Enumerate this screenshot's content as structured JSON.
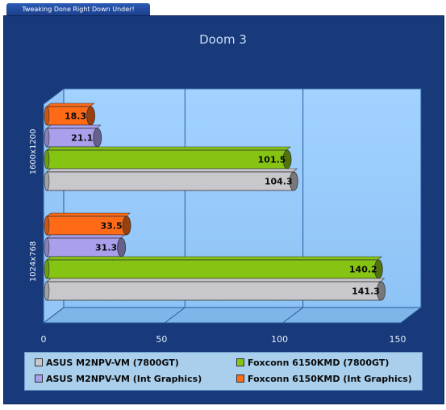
{
  "banner": "Tweaking Done Right Down Under!",
  "chart_data": {
    "type": "bar",
    "orientation": "horizontal",
    "title": "Doom 3",
    "categories": [
      "1600x1200",
      "1024x768"
    ],
    "series": [
      {
        "name": "ASUS M2NPV-VM (7800GT)",
        "color": "#c8c8cc",
        "values": [
          104.3,
          141.3
        ],
        "labels": [
          "104.3",
          "141.3"
        ]
      },
      {
        "name": "Foxconn 6150KMD (7800GT)",
        "color": "#86c413",
        "values": [
          101.5,
          140.2
        ],
        "labels": [
          "101.5",
          "140.2"
        ]
      },
      {
        "name": "ASUS M2NPV-VM (Int Graphics)",
        "color": "#a8a0ec",
        "values": [
          21.1,
          31.3
        ],
        "labels": [
          "21.1",
          "31.3"
        ]
      },
      {
        "name": "Foxconn 6150KMD (Int Graphics)",
        "color": "#ff6a17",
        "values": [
          18.3,
          33.5
        ],
        "labels": [
          "18.3",
          "33.5"
        ]
      }
    ],
    "xlim": [
      0,
      150
    ],
    "xticks": [
      "0",
      "50",
      "100",
      "150"
    ],
    "grid": true,
    "legend_position": "bottom"
  }
}
